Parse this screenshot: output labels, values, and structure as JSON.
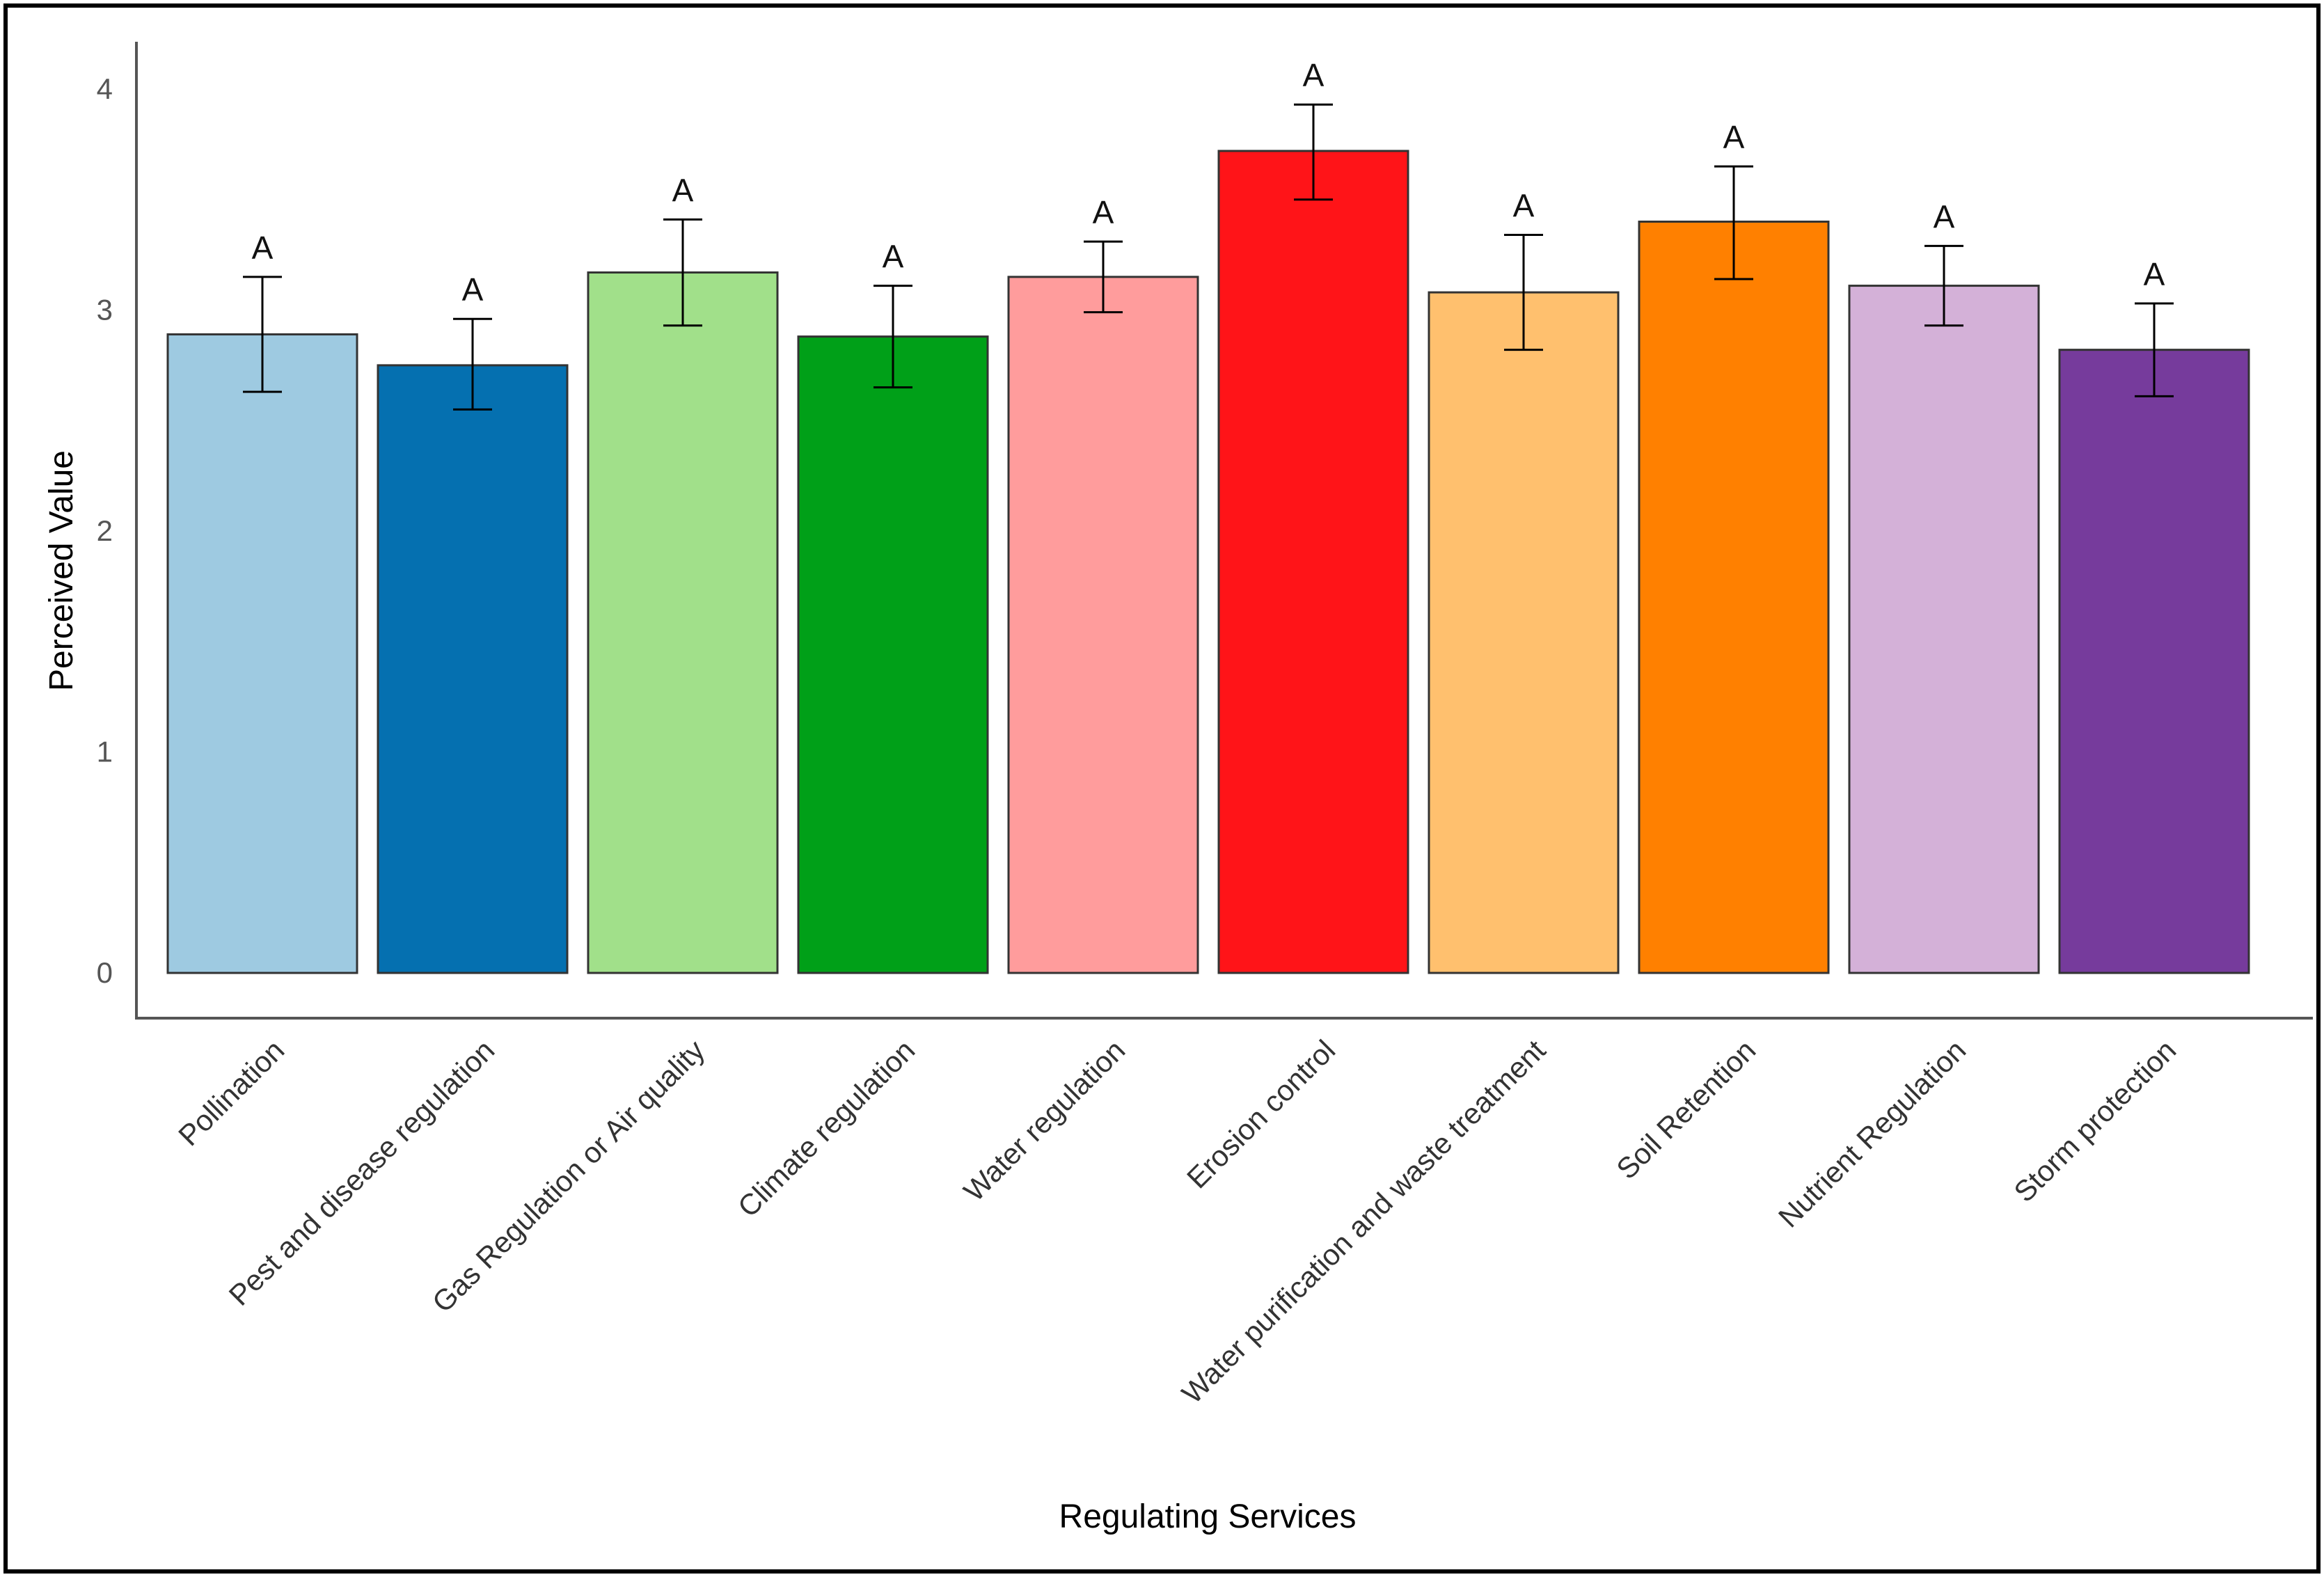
{
  "chart_data": {
    "type": "bar",
    "xlabel": "Regulating Services",
    "ylabel": "Perceived Value",
    "ylim": [
      0,
      4.3
    ],
    "yticks": [
      0,
      1,
      2,
      3,
      4
    ],
    "grid": false,
    "categories": [
      "Pollination",
      "Pest and disease regulation",
      "Gas Regulation or Air quality",
      "Climate regulation",
      "Water regulation",
      "Erosion control",
      "Water purification and waste treatment",
      "Soil Retention",
      "Nutrient Regulation",
      "Storm protection"
    ],
    "values": [
      2.89,
      2.75,
      3.17,
      2.88,
      3.15,
      3.72,
      3.08,
      3.4,
      3.11,
      2.82
    ],
    "error_low": [
      2.63,
      2.55,
      2.93,
      2.65,
      2.99,
      3.5,
      2.82,
      3.14,
      2.93,
      2.61
    ],
    "error_high": [
      3.15,
      2.96,
      3.41,
      3.11,
      3.31,
      3.93,
      3.34,
      3.65,
      3.29,
      3.03
    ],
    "significance": [
      "A",
      "A",
      "A",
      "A",
      "A",
      "A",
      "A",
      "A",
      "A",
      "A"
    ],
    "colors": [
      "#9ecae1",
      "#0570b0",
      "#a1e08a",
      "#00a018",
      "#ff9c9c",
      "#ff1418",
      "#ffc06e",
      "#ff8000",
      "#d4b1d8",
      "#763b9c"
    ]
  }
}
